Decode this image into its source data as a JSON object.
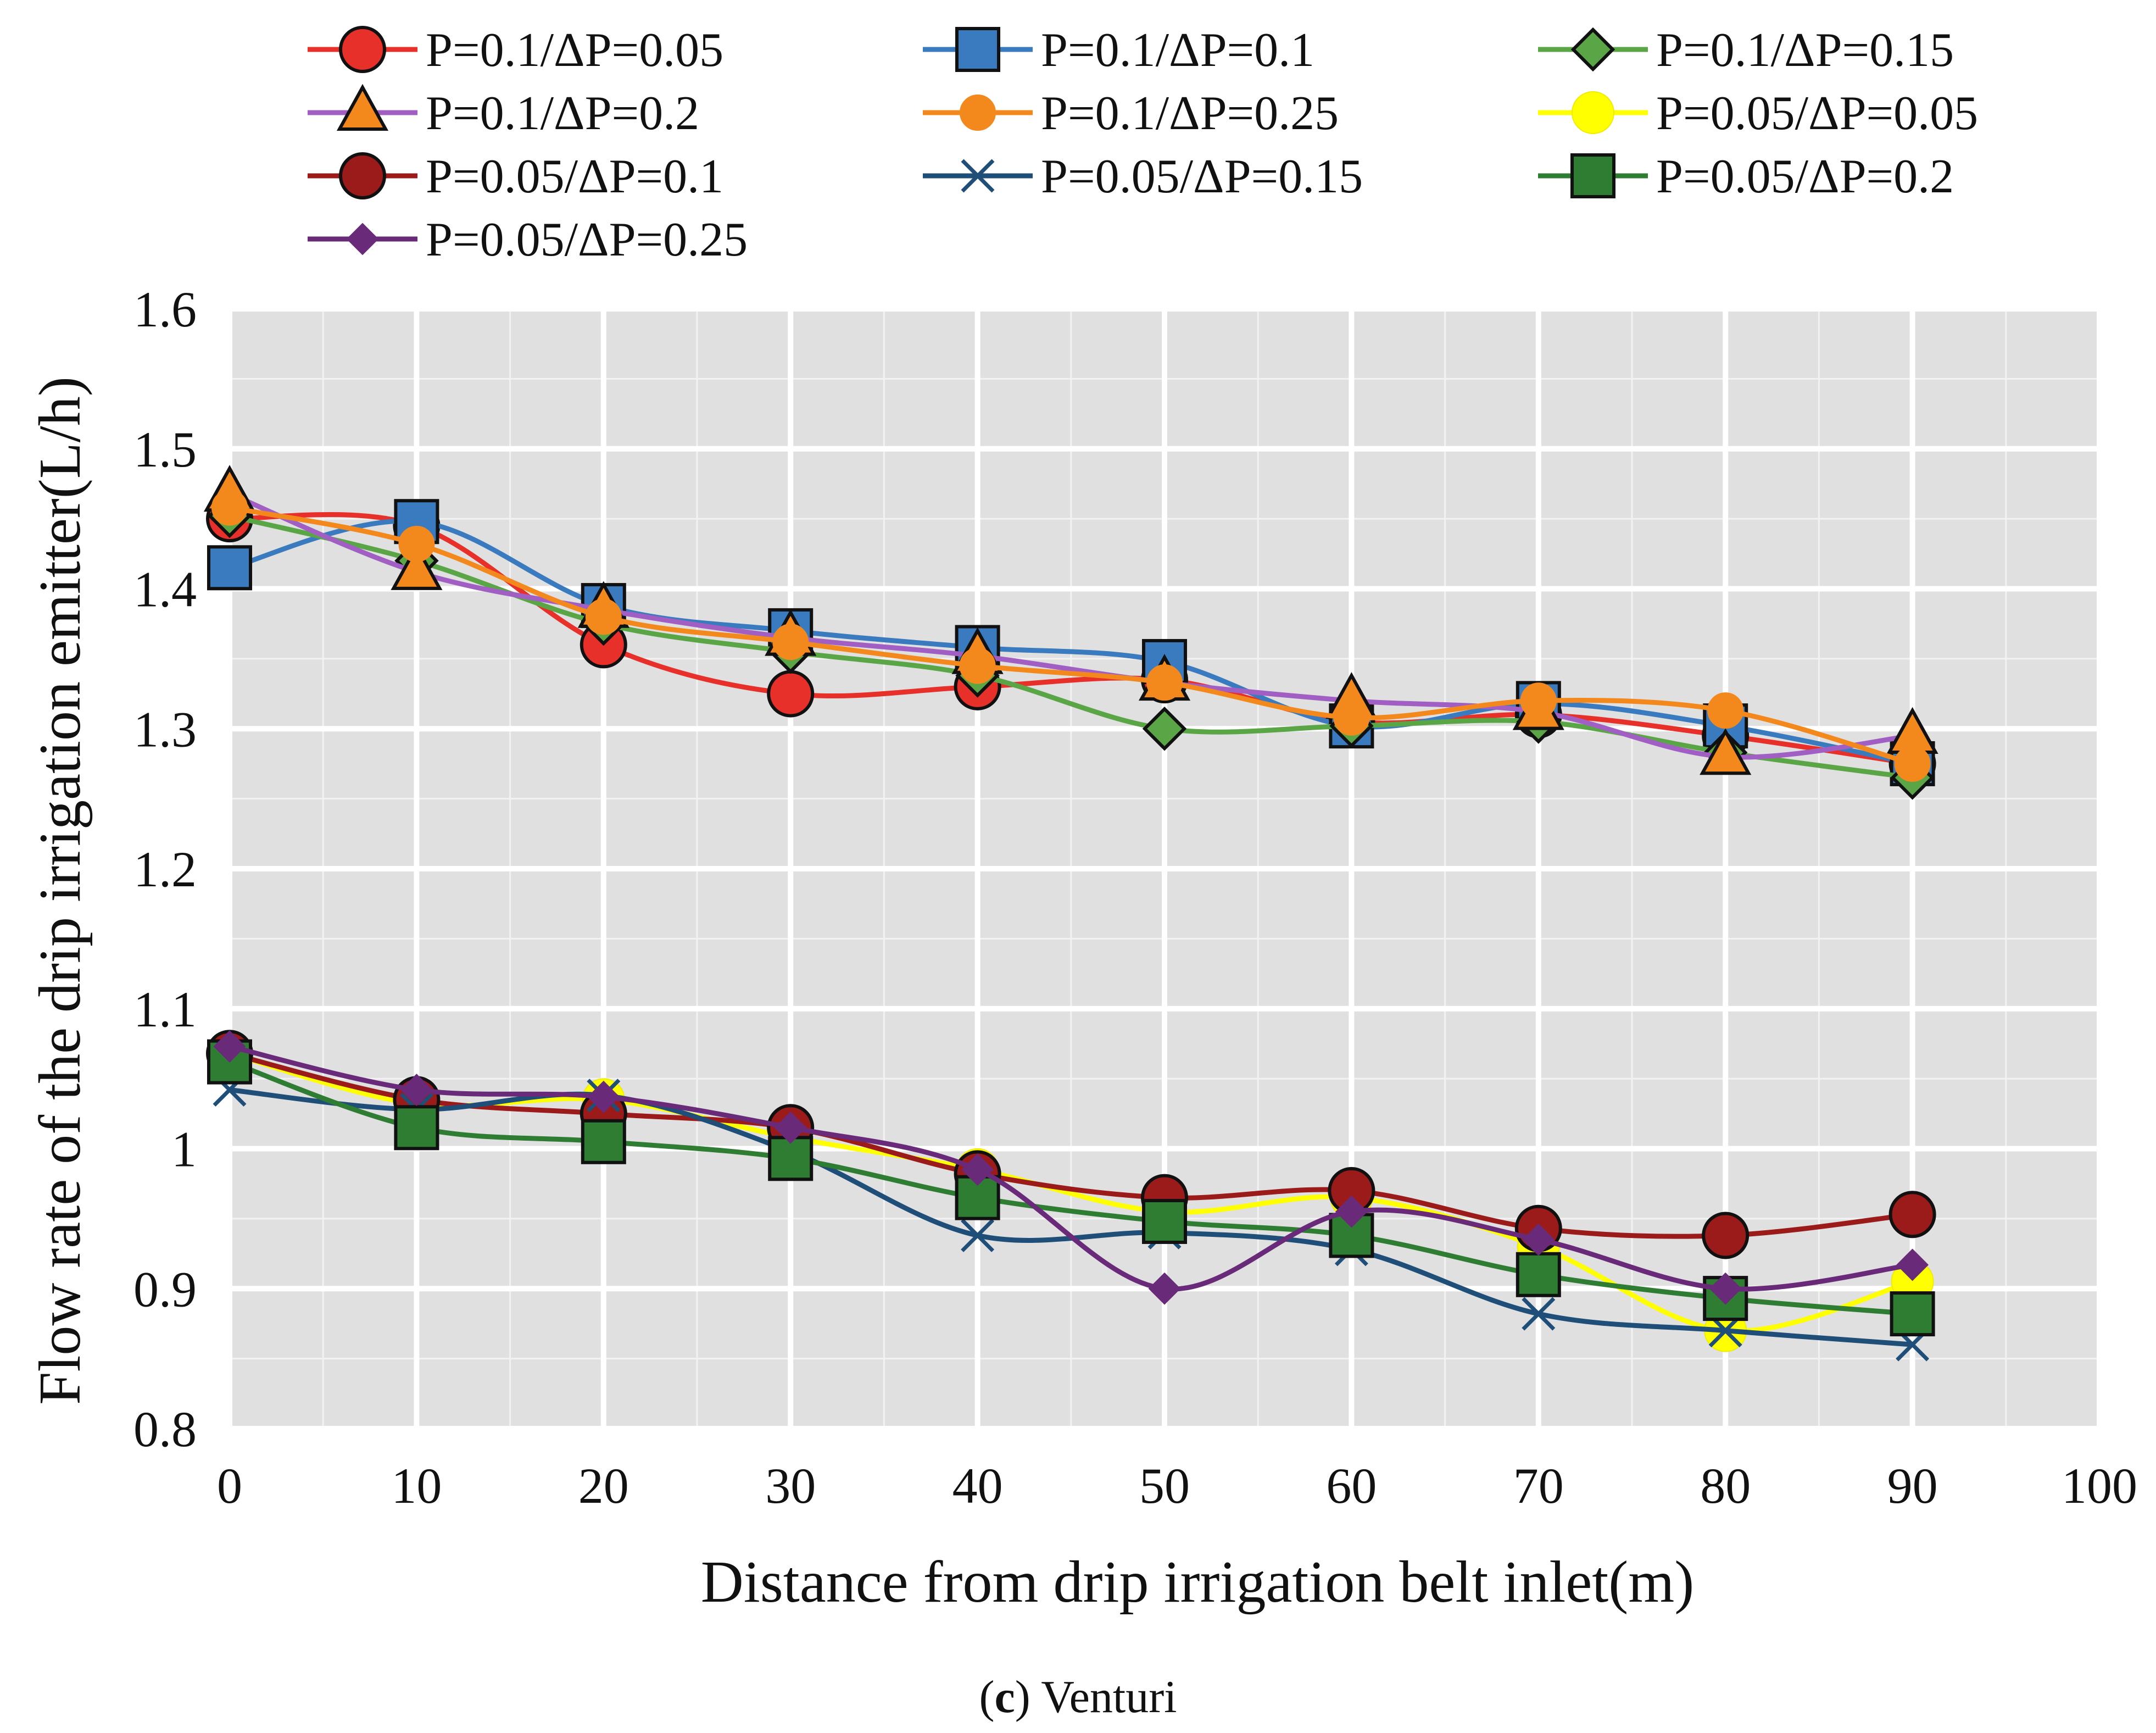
{
  "chart_data": {
    "type": "line",
    "title": "",
    "xlabel": "Distance from drip irrigation belt inlet(m)",
    "ylabel": "Flow rate of the drip irrigation emitter(L/h)",
    "xlim": [
      0,
      100
    ],
    "ylim": [
      0.8,
      1.6
    ],
    "x_ticks": [
      0,
      10,
      20,
      30,
      40,
      50,
      60,
      70,
      80,
      90,
      100
    ],
    "x_tick_labels": [
      "0",
      "10",
      "20",
      "30",
      "40",
      "50",
      "60",
      "70",
      "80",
      "90",
      "100"
    ],
    "y_ticks": [
      0.8,
      0.9,
      1.0,
      1.1,
      1.2,
      1.3,
      1.4,
      1.5,
      1.6
    ],
    "y_tick_labels": [
      "0.8",
      "0.9",
      "1",
      "1.1",
      "1.2",
      "1.3",
      "1.4",
      "1.5",
      "1.6"
    ],
    "grid": true,
    "legend_position": "top",
    "x": [
      0,
      10,
      20,
      30,
      40,
      50,
      60,
      70,
      80,
      90
    ],
    "series": [
      {
        "name": "P=0.1/ΔP=0.05",
        "color": "#e8302a",
        "marker": "circle",
        "values": [
          1.45,
          1.445,
          1.36,
          1.325,
          1.33,
          1.335,
          1.305,
          1.31,
          1.295,
          1.275
        ]
      },
      {
        "name": "P=0.1/ΔP=0.1",
        "color": "#3a7bbf",
        "marker": "square",
        "values": [
          1.415,
          1.448,
          1.388,
          1.37,
          1.358,
          1.348,
          1.302,
          1.318,
          1.302,
          1.275
        ]
      },
      {
        "name": "P=0.1/ΔP=0.15",
        "color": "#5aa646",
        "marker": "diamond",
        "values": [
          1.452,
          1.42,
          1.375,
          1.355,
          1.338,
          1.3,
          1.302,
          1.305,
          1.283,
          1.265
        ]
      },
      {
        "name": "P=0.1/ΔP=0.2",
        "color": "#a15fc4",
        "marker": "triangle",
        "values": [
          1.468,
          1.412,
          1.385,
          1.365,
          1.352,
          1.333,
          1.32,
          1.312,
          1.28,
          1.295
        ]
      },
      {
        "name": "P=0.1/ΔP=0.25",
        "color": "#f3891c",
        "marker": "circle-small",
        "values": [
          1.458,
          1.432,
          1.38,
          1.362,
          1.345,
          1.333,
          1.308,
          1.32,
          1.313,
          1.275
        ]
      },
      {
        "name": "P=0.05/ΔP=0.05",
        "color": "#ffff00",
        "marker": "circle-noborder",
        "values": [
          1.068,
          1.032,
          1.035,
          1.008,
          0.985,
          0.955,
          0.965,
          0.93,
          0.87,
          0.905
        ]
      },
      {
        "name": "P=0.05/ΔP=0.1",
        "color": "#9b1b1b",
        "marker": "circle",
        "values": [
          1.068,
          1.035,
          1.025,
          1.015,
          0.982,
          0.965,
          0.97,
          0.943,
          0.938,
          0.953
        ]
      },
      {
        "name": "P=0.05/ΔP=0.15",
        "color": "#1f4e79",
        "marker": "x",
        "values": [
          1.042,
          1.028,
          1.038,
          0.998,
          0.938,
          0.94,
          0.928,
          0.882,
          0.87,
          0.86
        ]
      },
      {
        "name": "P=0.05/ΔP=0.2",
        "color": "#2e7d32",
        "marker": "square",
        "values": [
          1.062,
          1.015,
          1.005,
          0.993,
          0.965,
          0.948,
          0.938,
          0.91,
          0.893,
          0.882
        ]
      },
      {
        "name": "P=0.05/ΔP=0.25",
        "color": "#6a2a7a",
        "marker": "diamond-small",
        "values": [
          1.073,
          1.042,
          1.037,
          1.015,
          0.985,
          0.9,
          0.955,
          0.935,
          0.9,
          0.917
        ]
      }
    ]
  },
  "caption": {
    "letter": "c",
    "text": "Venturi"
  }
}
